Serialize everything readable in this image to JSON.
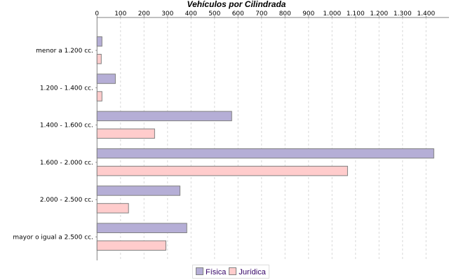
{
  "chart_data": {
    "type": "bar",
    "orientation": "horizontal",
    "title": "Vehículos por Cilindrada",
    "categories": [
      "menor a 1.200 cc.",
      "1.200 - 1.400 cc.",
      "1.400 - 1.600 cc.",
      "1.600 - 2.000 cc.",
      "2.000 - 2.500 cc.",
      "mayor o igual a 2.500 cc."
    ],
    "series": [
      {
        "name": "Física",
        "color": "#b5aed6",
        "values": [
          21,
          78,
          573,
          1433,
          353,
          382
        ]
      },
      {
        "name": "Jurídica",
        "color": "#ffcccc",
        "values": [
          18,
          21,
          245,
          1066,
          134,
          293
        ]
      }
    ],
    "xlim": [
      0,
      1490
    ],
    "ticks": [
      0,
      100,
      200,
      300,
      400,
      500,
      600,
      700,
      800,
      900,
      1000,
      1100,
      1200,
      1300,
      1400
    ],
    "tick_labels": [
      "0",
      "100",
      "200",
      "300",
      "400",
      "500",
      "600",
      "700",
      "800",
      "900",
      "1.000",
      "1.100",
      "1.200",
      "1.300",
      "1.400"
    ],
    "axis_position": "top",
    "grid": true,
    "legend_position": "bottom"
  }
}
